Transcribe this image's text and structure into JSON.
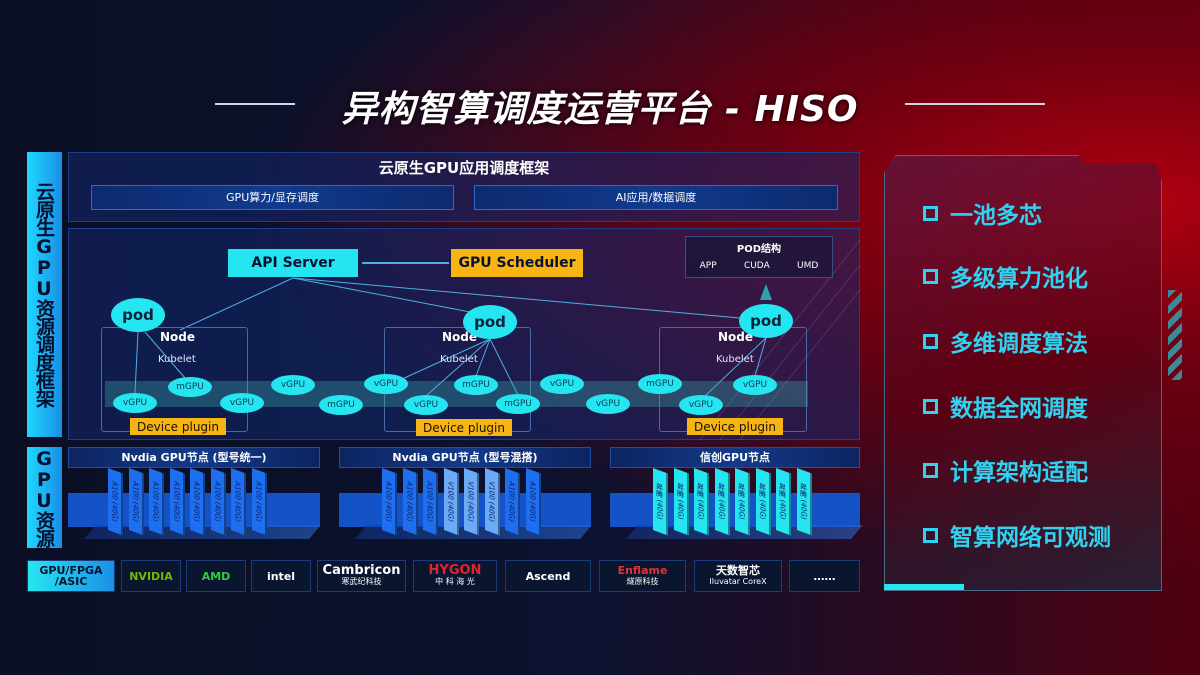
{
  "title": "异构智算调度运营平台 - HISO",
  "side_labels": {
    "framework": "云原生GPU资源调度框架",
    "resources": "GPU资源"
  },
  "app_framework": {
    "title": "云原生GPU应用调度框架",
    "boxes": [
      "GPU算力/显存调度",
      "AI应用/数据调度"
    ]
  },
  "scheduler": {
    "api_server": "API Server",
    "gpu_scheduler": "GPU Scheduler",
    "pod_structure": {
      "title": "POD结构",
      "items": [
        "APP",
        "CUDA",
        "UMD"
      ]
    },
    "pod_label": "pod",
    "node_label": "Node",
    "kubelet_label": "Kubelet",
    "device_plugin": "Device plugin",
    "gpus": [
      "vGPU",
      "mGPU",
      "vGPU",
      "vGPU",
      "mGPU",
      "vGPU",
      "vGPU",
      "mGPU",
      "mGPU",
      "vGPU",
      "vGPU",
      "mGPU",
      "vGPU",
      "vGPU"
    ]
  },
  "gpu_nodes": [
    {
      "title": "Nvdia GPU节点 (型号统一)",
      "cards": [
        "A100 (40G)",
        "A100 (40G)",
        "A100 (40G)",
        "A100 (40G)",
        "A100 (40G)",
        "A100 (40G)",
        "A100 (40G)",
        "A100 (40G)"
      ]
    },
    {
      "title": "Nvdia GPU节点 (型号混搭)",
      "cards": [
        "A100 (40G)",
        "A100 (40G)",
        "A100 (40G)",
        "V100 (40G)",
        "V100 (40G)",
        "V100 (40G)",
        "A100 (40G)",
        "A100 (40G)"
      ]
    },
    {
      "title": "信创GPU节点",
      "cards": [
        "昇腾 (40G)",
        "昇腾 (40G)",
        "昇腾 (40G)",
        "昇腾 (40G)",
        "昇腾 (40G)",
        "昇腾 (40G)",
        "昇腾 (40G)",
        "昇腾 (40G)"
      ]
    }
  ],
  "vendors": {
    "label": "GPU/FPGA /ASIC",
    "items": [
      {
        "name": "NVIDIA",
        "sub": "",
        "color": "#76b900"
      },
      {
        "name": "AMD",
        "sub": "",
        "color": "#2ecc40"
      },
      {
        "name": "intel",
        "sub": "",
        "color": "#ffffff"
      },
      {
        "name": "Cambricon",
        "sub": "寒武纪科技",
        "color": "#ffffff"
      },
      {
        "name": "HYGON",
        "sub": "中 科 海 光",
        "color": "#e0252e"
      },
      {
        "name": "Ascend",
        "sub": "",
        "color": "#ffffff"
      },
      {
        "name": "Enflame",
        "sub": "燧原科技",
        "color": "#e0352e"
      },
      {
        "name": "天数智芯",
        "sub": "Iluvatar CoreX",
        "color": "#ffffff"
      },
      {
        "name": "……",
        "sub": "",
        "color": "#ffffff"
      }
    ]
  },
  "features": [
    "一池多芯",
    "多级算力池化",
    "多维调度算法",
    "数据全网调度",
    "计算架构适配",
    "智算网络可观测"
  ],
  "colors": {
    "cyan": "#25e6f0",
    "orange": "#f7b514",
    "blue": "#1452c8"
  }
}
